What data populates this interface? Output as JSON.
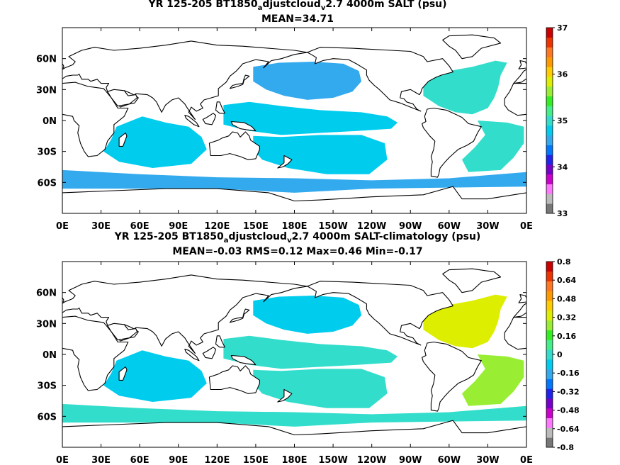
{
  "chart_data": [
    {
      "type": "heatmap",
      "title_parts": [
        "YR 125-205 BT1850",
        "a",
        "djustcloud",
        "v",
        "2.7 4000m SALT (psu)"
      ],
      "subtitle": "MEAN=34.71",
      "x_ticks": [
        "0E",
        "30E",
        "60E",
        "90E",
        "120E",
        "150E",
        "180E",
        "150W",
        "120W",
        "90W",
        "60W",
        "30W",
        "0E"
      ],
      "y_ticks": [
        "60N",
        "30N",
        "0N",
        "30S",
        "60S"
      ],
      "y_tick_values": [
        60,
        30,
        0,
        -30,
        -60
      ],
      "xlim": [
        0,
        360
      ],
      "ylim": [
        -90,
        90
      ],
      "colorbar": {
        "min": 33,
        "max": 37,
        "labels": [
          "37",
          "36",
          "35",
          "34",
          "33"
        ],
        "colors": [
          "#777777",
          "#bbbbbb",
          "#ff77ff",
          "#cc00cc",
          "#7700cc",
          "#2222ee",
          "#0077ff",
          "#33aaee",
          "#00ccee",
          "#33ddcc",
          "#44ee88",
          "#33ee22",
          "#99ee33",
          "#ddee00",
          "#ffcc00",
          "#ff9900",
          "#ff7722",
          "#ee3300",
          "#cc0000"
        ]
      },
      "regions": [
        {
          "label": "North Pacific",
          "level": 34.6
        },
        {
          "label": "Equatorial Pacific",
          "level": 34.8
        },
        {
          "label": "South Pacific",
          "level": 34.75
        },
        {
          "label": "Indian Ocean",
          "level": 34.75
        },
        {
          "label": "Southern Ocean",
          "level": 34.55
        },
        {
          "label": "North Atlantic",
          "level": 35.0
        },
        {
          "label": "South Atlantic",
          "level": 34.95
        }
      ]
    },
    {
      "type": "heatmap",
      "title_parts": [
        "YR 125-205 BT1850",
        "a",
        "djustcloud",
        "v",
        "2.7 4000m SALT-climatology (psu)"
      ],
      "subtitle": "MEAN=-0.03   RMS=0.12   Max=0.46   Min=-0.17",
      "x_ticks": [
        "0E",
        "30E",
        "60E",
        "90E",
        "120E",
        "150E",
        "180E",
        "150W",
        "120W",
        "90W",
        "60W",
        "30W",
        "0E"
      ],
      "y_ticks": [
        "60N",
        "30N",
        "0N",
        "30S",
        "60S"
      ],
      "y_tick_values": [
        60,
        30,
        0,
        -30,
        -60
      ],
      "xlim": [
        0,
        360
      ],
      "ylim": [
        -90,
        90
      ],
      "colorbar": {
        "min": -0.8,
        "max": 0.8,
        "labels": [
          "0.8",
          "0.64",
          "0.48",
          "0.32",
          "0.16",
          "0",
          "-0.16",
          "-0.32",
          "-0.48",
          "-0.64",
          "-0.8"
        ],
        "colors": [
          "#777777",
          "#bbbbbb",
          "#ff77ff",
          "#cc00cc",
          "#7700cc",
          "#2222ee",
          "#0077ff",
          "#33aaee",
          "#00ccee",
          "#33ddcc",
          "#44ee88",
          "#33ee22",
          "#99ee33",
          "#ddee00",
          "#ffcc00",
          "#ff9900",
          "#ff7722",
          "#ee3300",
          "#cc0000"
        ]
      },
      "regions": [
        {
          "label": "North Pacific",
          "level": -0.1
        },
        {
          "label": "Equatorial Pacific",
          "level": -0.02
        },
        {
          "label": "South Pacific",
          "level": -0.03
        },
        {
          "label": "Indian Ocean",
          "level": -0.08
        },
        {
          "label": "Southern Ocean",
          "level": -0.02
        },
        {
          "label": "North Atlantic",
          "level": 0.35
        },
        {
          "label": "South Atlantic",
          "level": 0.25
        }
      ]
    }
  ]
}
